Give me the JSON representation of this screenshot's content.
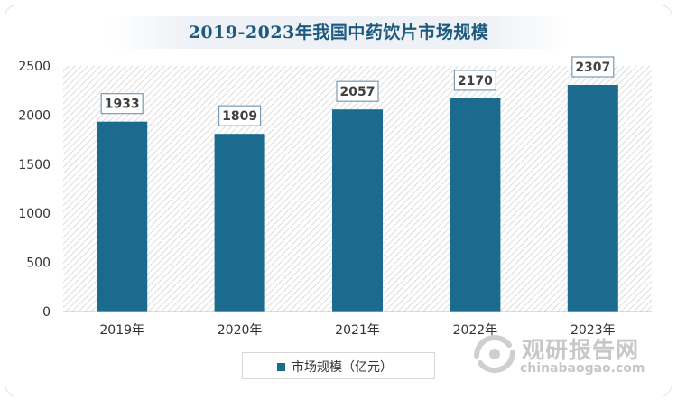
{
  "chart_data": {
    "type": "bar",
    "title": "2019-2023年我国中药饮片市场规模",
    "categories": [
      "2019年",
      "2020年",
      "2021年",
      "2022年",
      "2023年"
    ],
    "series": [
      {
        "name": "市场规模（亿元）",
        "values": [
          1933,
          1809,
          2057,
          2170,
          2307
        ]
      }
    ],
    "ylim": [
      0,
      2500
    ],
    "yticks": [
      0,
      500,
      1000,
      1500,
      2000,
      2500
    ],
    "data_labels": true,
    "grid": false,
    "legend_position": "bottom",
    "colors": {
      "bar": "#1b6b8e",
      "title": "#1d5a80",
      "plot_hatch": "#d4d4d4",
      "data_label_border": "#7a9bb0"
    }
  },
  "watermark": {
    "name": "观研报告网",
    "domain": "chinabaogao.com"
  }
}
